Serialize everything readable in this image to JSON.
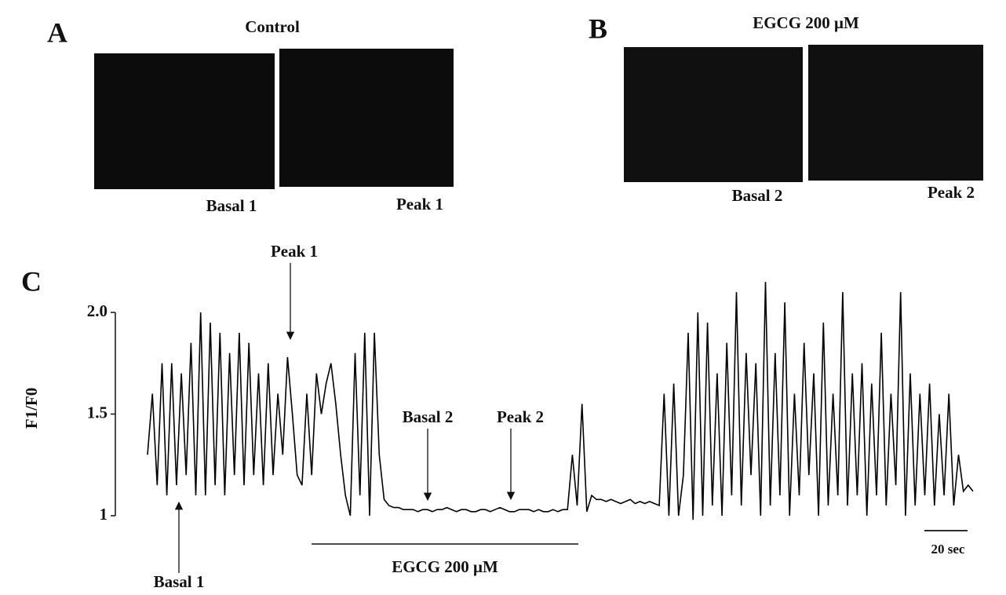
{
  "panels": [
    {
      "letter": "A",
      "title": "Control",
      "images": [
        {
          "caption": "Basal 1"
        },
        {
          "caption": "Peak 1"
        }
      ]
    },
    {
      "letter": "B",
      "title": "EGCG 200 μM",
      "images": [
        {
          "caption": "Basal 2"
        },
        {
          "caption": "Peak 2"
        }
      ]
    }
  ],
  "chart_data": {
    "type": "line",
    "panel_letter": "C",
    "ylabel": "F1/F0",
    "ylim": [
      1,
      2
    ],
    "yticks": [
      1,
      {
        "value": 1.5,
        "label": "1.5"
      },
      {
        "value": 2,
        "label": "2.0"
      }
    ],
    "series": [
      {
        "name": "F1/F0",
        "color": "#000000",
        "values": [
          1.3,
          1.6,
          1.15,
          1.75,
          1.1,
          1.75,
          1.15,
          1.7,
          1.2,
          1.85,
          1.1,
          2.0,
          1.1,
          1.95,
          1.15,
          1.9,
          1.1,
          1.8,
          1.2,
          1.9,
          1.15,
          1.85,
          1.2,
          1.7,
          1.15,
          1.75,
          1.2,
          1.6,
          1.3,
          1.78,
          1.5,
          1.2,
          1.15,
          1.6,
          1.2,
          1.7,
          1.5,
          1.65,
          1.75,
          1.55,
          1.3,
          1.1,
          1.0,
          1.8,
          1.1,
          1.9,
          1.0,
          1.9,
          1.3,
          1.08,
          1.05,
          1.04,
          1.04,
          1.03,
          1.03,
          1.03,
          1.02,
          1.03,
          1.03,
          1.02,
          1.03,
          1.03,
          1.04,
          1.03,
          1.02,
          1.03,
          1.03,
          1.02,
          1.02,
          1.03,
          1.03,
          1.02,
          1.03,
          1.04,
          1.03,
          1.02,
          1.02,
          1.03,
          1.03,
          1.03,
          1.02,
          1.03,
          1.02,
          1.02,
          1.03,
          1.02,
          1.03,
          1.03,
          1.3,
          1.05,
          1.55,
          1.02,
          1.1,
          1.08,
          1.08,
          1.07,
          1.08,
          1.07,
          1.06,
          1.07,
          1.08,
          1.06,
          1.07,
          1.06,
          1.07,
          1.06,
          1.05,
          1.6,
          1.0,
          1.65,
          1.0,
          1.2,
          1.9,
          0.98,
          2.0,
          1.0,
          1.95,
          1.05,
          1.7,
          1.0,
          1.85,
          1.1,
          2.1,
          1.05,
          1.8,
          1.2,
          1.75,
          1.0,
          2.15,
          1.05,
          1.8,
          1.1,
          2.05,
          1.0,
          1.6,
          1.1,
          1.85,
          1.2,
          1.7,
          1.0,
          1.95,
          1.05,
          1.6,
          1.1,
          2.1,
          1.05,
          1.7,
          1.1,
          1.75,
          1.0,
          1.65,
          1.1,
          1.9,
          1.05,
          1.6,
          1.15,
          2.1,
          1.0,
          1.7,
          1.05,
          1.6,
          1.1,
          1.65,
          1.05,
          1.5,
          1.1,
          1.6,
          1.05,
          1.3,
          1.12,
          1.15,
          1.12
        ]
      }
    ],
    "annotations": [
      "Peak 1",
      "Basal 1",
      "Basal 2",
      "Peak 2"
    ],
    "treatment_label": "EGCG 200 μM",
    "scale_bar_label": "20 sec"
  }
}
